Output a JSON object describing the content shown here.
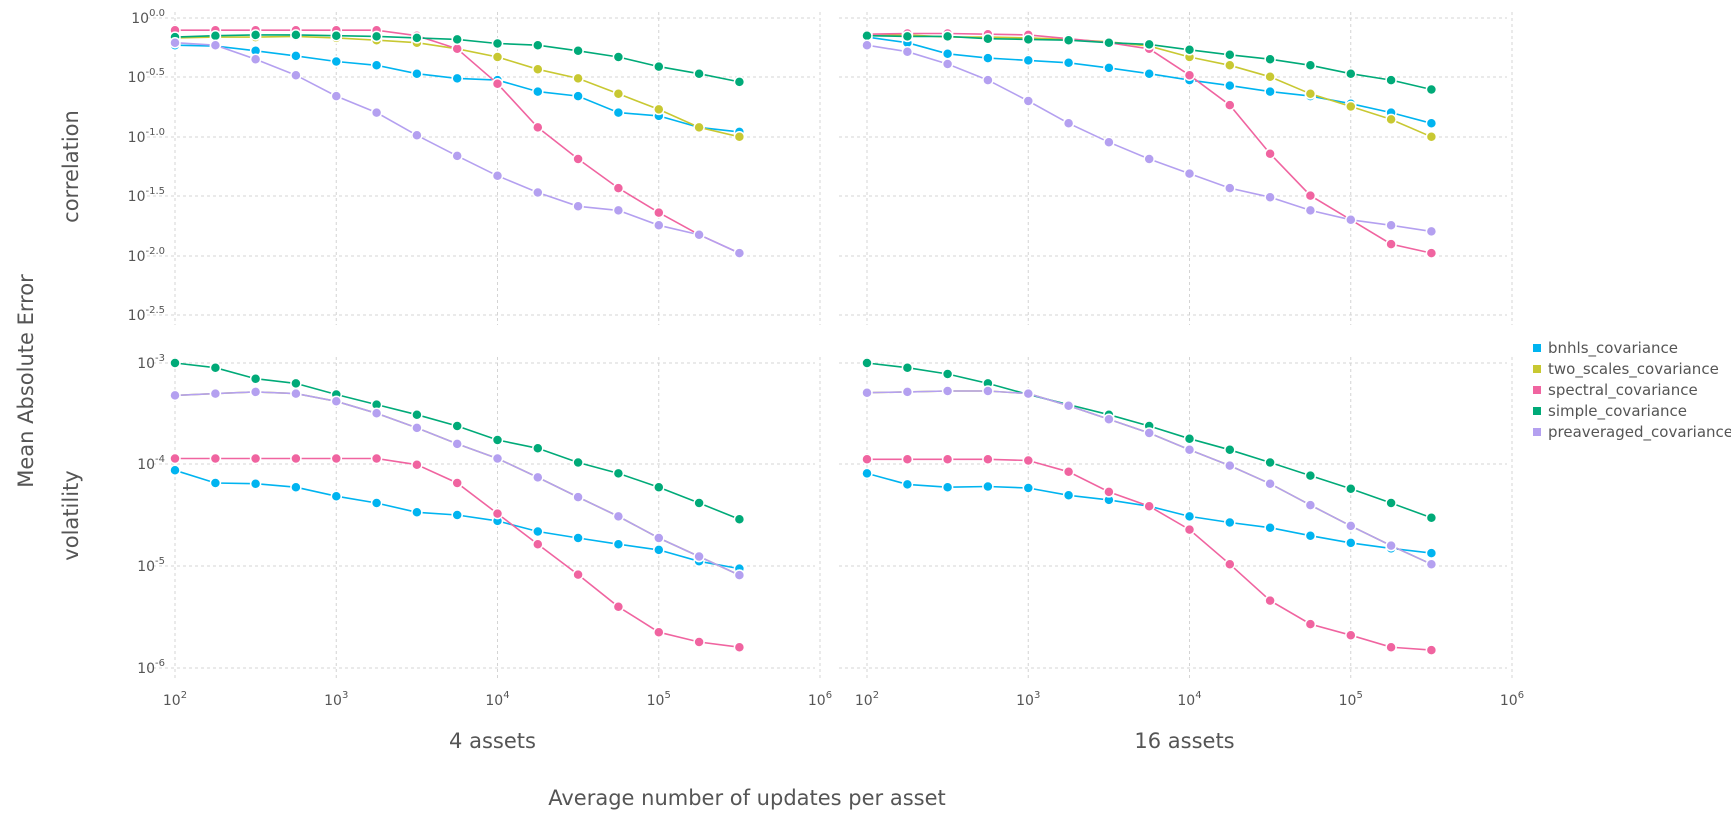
{
  "chart_data": {
    "type": "line",
    "ylabel": "Mean Absolute Error",
    "xlabel": "Average number of updates per asset",
    "x_scale": "log",
    "y_scale": "log",
    "legend_position": "right",
    "grid": true,
    "x_ticks": [
      {
        "base": "10",
        "exp": "2"
      },
      {
        "base": "10",
        "exp": "3"
      },
      {
        "base": "10",
        "exp": "4"
      },
      {
        "base": "10",
        "exp": "5"
      },
      {
        "base": "10",
        "exp": "6"
      }
    ],
    "columns": [
      "4 assets",
      "16 assets"
    ],
    "rows": [
      {
        "label": "correlation",
        "y_ticks": [
          {
            "base": "10",
            "exp": "0.0"
          },
          {
            "base": "10",
            "exp": "-0.5"
          },
          {
            "base": "10",
            "exp": "-1.0"
          },
          {
            "base": "10",
            "exp": "-1.5"
          },
          {
            "base": "10",
            "exp": "-2.0"
          },
          {
            "base": "10",
            "exp": "-2.5"
          }
        ]
      },
      {
        "label": "volatility",
        "y_ticks": [
          {
            "base": "10",
            "exp": "-3"
          },
          {
            "base": "10",
            "exp": "-4"
          },
          {
            "base": "10",
            "exp": "-5"
          },
          {
            "base": "10",
            "exp": "-6"
          }
        ]
      }
    ],
    "x": [
      100,
      178,
      316,
      562,
      1000,
      1778,
      3162,
      5623,
      10000,
      17783,
      31623,
      56234,
      100000,
      177828,
      316228
    ],
    "series_styles": [
      {
        "name": "bnhls_covariance",
        "color": "#00b4f0"
      },
      {
        "name": "two_scales_covariance",
        "color": "#c8c832"
      },
      {
        "name": "spectral_covariance",
        "color": "#f064a0"
      },
      {
        "name": "simple_covariance",
        "color": "#00aa78"
      },
      {
        "name": "preaveraged_covariance",
        "color": "#b4a0f0"
      }
    ],
    "panels": [
      {
        "row": 0,
        "col": 0,
        "series": [
          {
            "name": "bnhls_covariance",
            "values": [
              0.59,
              0.58,
              0.53,
              0.48,
              0.43,
              0.4,
              0.34,
              0.31,
              0.3,
              0.24,
              0.22,
              0.16,
              0.15,
              0.12,
              0.11
            ]
          },
          {
            "name": "two_scales_covariance",
            "values": [
              0.68,
              0.69,
              0.69,
              0.7,
              0.68,
              0.65,
              0.62,
              0.55,
              0.47,
              0.37,
              0.31,
              0.23,
              0.17,
              0.12,
              0.1
            ]
          },
          {
            "name": "spectral_covariance",
            "values": [
              0.79,
              0.79,
              0.79,
              0.79,
              0.79,
              0.79,
              0.71,
              0.55,
              0.28,
              0.12,
              0.065,
              0.037,
              0.023,
              0.015,
              0.0105
            ]
          },
          {
            "name": "simple_covariance",
            "values": [
              0.69,
              0.71,
              0.72,
              0.72,
              0.71,
              0.7,
              0.68,
              0.66,
              0.61,
              0.59,
              0.53,
              0.47,
              0.39,
              0.34,
              0.29
            ]
          },
          {
            "name": "preaveraged_covariance",
            "values": [
              0.62,
              0.59,
              0.45,
              0.33,
              0.22,
              0.16,
              0.103,
              0.069,
              0.047,
              0.034,
              0.026,
              0.024,
              0.018,
              0.015,
              0.0105
            ]
          }
        ]
      },
      {
        "row": 0,
        "col": 1,
        "series": [
          {
            "name": "bnhls_covariance",
            "values": [
              0.69,
              0.62,
              0.5,
              0.46,
              0.44,
              0.42,
              0.38,
              0.34,
              0.3,
              0.27,
              0.24,
              0.22,
              0.19,
              0.16,
              0.13
            ]
          },
          {
            "name": "two_scales_covariance",
            "values": [
              0.71,
              0.72,
              0.69,
              0.69,
              0.68,
              0.66,
              0.63,
              0.58,
              0.47,
              0.4,
              0.32,
              0.23,
              0.18,
              0.14,
              0.1
            ]
          },
          {
            "name": "spectral_covariance",
            "values": [
              0.73,
              0.74,
              0.74,
              0.73,
              0.72,
              0.67,
              0.62,
              0.55,
              0.33,
              0.185,
              0.072,
              0.032,
              0.02,
              0.0125,
              0.0105
            ]
          },
          {
            "name": "simple_covariance",
            "values": [
              0.71,
              0.7,
              0.7,
              0.67,
              0.66,
              0.65,
              0.62,
              0.6,
              0.54,
              0.49,
              0.45,
              0.4,
              0.34,
              0.3,
              0.25
            ]
          },
          {
            "name": "preaveraged_covariance",
            "values": [
              0.59,
              0.52,
              0.41,
              0.3,
              0.2,
              0.13,
              0.09,
              0.065,
              0.049,
              0.037,
              0.031,
              0.024,
              0.02,
              0.018,
              0.016
            ]
          }
        ]
      },
      {
        "row": 1,
        "col": 0,
        "series": [
          {
            "name": "bnhls_covariance",
            "values": [
              8.8e-05,
              6.6e-05,
              6.5e-05,
              6e-05,
              4.9e-05,
              4.2e-05,
              3.4e-05,
              3.2e-05,
              2.8e-05,
              2.2e-05,
              1.9e-05,
              1.65e-05,
              1.45e-05,
              1.12e-05,
              9.5e-06
            ]
          },
          {
            "name": "two_scales_covariance",
            "values": [
              0.00048,
              0.0005,
              0.00052,
              0.0005,
              0.00042,
              0.00032,
              0.00023,
              0.00016,
              0.000115,
              7.5e-05,
              4.8e-05,
              3.1e-05,
              1.9e-05,
              1.25e-05,
              8.2e-06
            ]
          },
          {
            "name": "spectral_covariance",
            "values": [
              0.000115,
              0.000115,
              0.000115,
              0.000115,
              0.000115,
              0.000115,
              0.0001,
              6.6e-05,
              3.3e-05,
              1.65e-05,
              8.3e-06,
              4e-06,
              2.25e-06,
              1.8e-06,
              1.6e-06
            ]
          },
          {
            "name": "simple_covariance",
            "values": [
              0.001,
              0.0009,
              0.0007,
              0.00063,
              0.00049,
              0.00039,
              0.00031,
              0.00024,
              0.000175,
              0.000145,
              0.000105,
              8.2e-05,
              6e-05,
              4.2e-05,
              2.9e-05
            ]
          },
          {
            "name": "preaveraged_covariance",
            "values": [
              0.00048,
              0.0005,
              0.00052,
              0.0005,
              0.00042,
              0.00032,
              0.00023,
              0.00016,
              0.000115,
              7.5e-05,
              4.8e-05,
              3.1e-05,
              1.9e-05,
              1.25e-05,
              8.2e-06
            ]
          }
        ]
      },
      {
        "row": 1,
        "col": 1,
        "series": [
          {
            "name": "bnhls_covariance",
            "values": [
              8.2e-05,
              6.4e-05,
              6e-05,
              6.1e-05,
              5.9e-05,
              5e-05,
              4.5e-05,
              3.9e-05,
              3.1e-05,
              2.7e-05,
              2.4e-05,
              2e-05,
              1.7e-05,
              1.5e-05,
              1.35e-05
            ]
          },
          {
            "name": "two_scales_covariance",
            "values": [
              0.00051,
              0.00052,
              0.00053,
              0.00053,
              0.0005,
              0.00038,
              0.00028,
              0.000205,
              0.00014,
              9.8e-05,
              6.5e-05,
              4e-05,
              2.5e-05,
              1.6e-05,
              1.05e-05
            ]
          },
          {
            "name": "spectral_covariance",
            "values": [
              0.000113,
              0.000113,
              0.000113,
              0.000113,
              0.00011,
              8.5e-05,
              5.4e-05,
              3.9e-05,
              2.3e-05,
              1.05e-05,
              4.6e-06,
              2.7e-06,
              2.1e-06,
              1.6e-06,
              1.5e-06
            ]
          },
          {
            "name": "simple_covariance",
            "values": [
              0.001,
              0.0009,
              0.00078,
              0.00063,
              0.00049,
              0.00039,
              0.00031,
              0.00024,
              0.00018,
              0.00014,
              0.000105,
              7.8e-05,
              5.8e-05,
              4.2e-05,
              3e-05
            ]
          },
          {
            "name": "preaveraged_covariance",
            "values": [
              0.00051,
              0.00052,
              0.00053,
              0.00053,
              0.0005,
              0.00038,
              0.00028,
              0.000205,
              0.00014,
              9.8e-05,
              6.5e-05,
              4e-05,
              2.5e-05,
              1.6e-05,
              1.05e-05
            ]
          }
        ]
      }
    ]
  }
}
